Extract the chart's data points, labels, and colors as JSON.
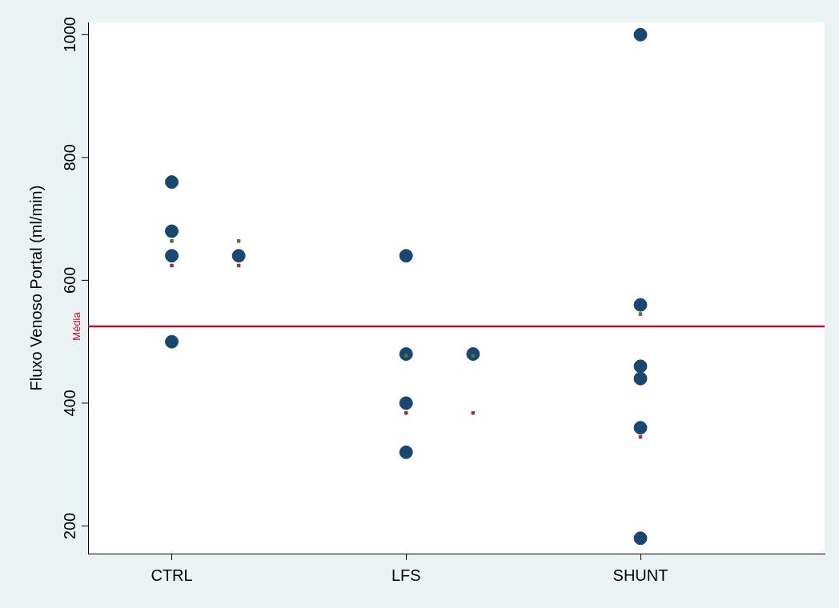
{
  "chart_data": {
    "type": "scatter",
    "ylabel": "Fluxo Venoso Portal (ml/min)",
    "categories": [
      null,
      null,
      "CTRL",
      null,
      null,
      null,
      null,
      null,
      null,
      "LFS",
      null,
      null,
      null,
      null,
      null,
      null,
      "SHUNT",
      null,
      null,
      null,
      null,
      null
    ],
    "ylim": [
      155,
      1020
    ],
    "yticks": [
      200,
      400,
      600,
      800,
      1000
    ],
    "grid": false,
    "legend": false,
    "marker": "circle",
    "ref_lines": [
      {
        "axis": "y",
        "value": 525,
        "label": "Média",
        "color": "#c8102e"
      }
    ],
    "series": [
      {
        "color": "#1a476f",
        "values": [
          null,
          null,
          760,
          null,
          640,
          null,
          null,
          null,
          null,
          640,
          null,
          480,
          null,
          null,
          null,
          null,
          1000,
          null,
          null,
          null,
          null,
          null
        ]
      },
      {
        "color": "#1a476f",
        "values": [
          null,
          null,
          680,
          null,
          null,
          null,
          null,
          null,
          null,
          480,
          null,
          null,
          null,
          null,
          null,
          null,
          560,
          null,
          null,
          null,
          null,
          null
        ]
      },
      {
        "color": "#1a476f",
        "values": [
          null,
          null,
          640,
          null,
          null,
          null,
          null,
          null,
          null,
          400,
          null,
          null,
          null,
          null,
          null,
          null,
          460,
          null,
          null,
          null,
          null,
          null
        ]
      },
      {
        "color": "#1a476f",
        "values": [
          null,
          null,
          500,
          null,
          null,
          null,
          null,
          null,
          null,
          320,
          null,
          null,
          null,
          null,
          null,
          null,
          440,
          null,
          null,
          null,
          null,
          null
        ]
      },
      {
        "color": "#1a476f",
        "values": [
          null,
          null,
          null,
          null,
          null,
          null,
          null,
          null,
          null,
          null,
          null,
          null,
          null,
          null,
          null,
          null,
          360,
          null,
          null,
          null,
          null,
          null
        ]
      },
      {
        "color": "#1a476f",
        "values": [
          null,
          null,
          null,
          null,
          null,
          null,
          null,
          null,
          null,
          null,
          null,
          null,
          null,
          null,
          null,
          null,
          180,
          null,
          null,
          null,
          null,
          null
        ]
      },
      {
        "color": "#55752f",
        "marker": "square",
        "values": [
          null,
          null,
          664,
          null,
          664,
          null,
          null,
          null,
          null,
          477,
          null,
          477,
          null,
          null,
          null,
          null,
          545,
          null,
          null,
          null,
          null,
          null
        ]
      },
      {
        "color": "#90353b",
        "marker": "square",
        "values": [
          null,
          null,
          624,
          null,
          624,
          null,
          null,
          null,
          null,
          384,
          null,
          384,
          null,
          null,
          null,
          null,
          345,
          null,
          null,
          null,
          null,
          null
        ]
      }
    ]
  }
}
